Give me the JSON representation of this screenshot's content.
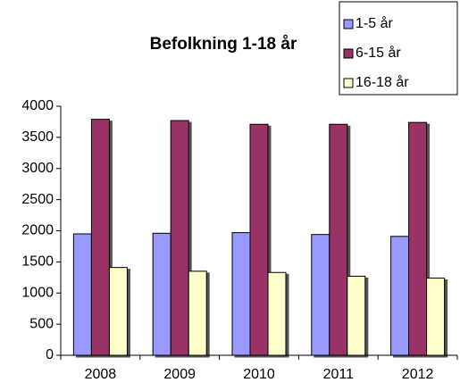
{
  "chart_data": {
    "type": "bar",
    "title": "Befolkning 1-18 år",
    "categories": [
      "2008",
      "2009",
      "2010",
      "2011",
      "2012"
    ],
    "series": [
      {
        "name": "1-5 år",
        "color": "#9999ff",
        "values": [
          1950,
          1960,
          1970,
          1940,
          1910
        ]
      },
      {
        "name": "6-15 år",
        "color": "#993366",
        "values": [
          3790,
          3770,
          3710,
          3710,
          3740
        ]
      },
      {
        "name": "16-18 år",
        "color": "#ffffcc",
        "values": [
          1410,
          1350,
          1330,
          1270,
          1240
        ]
      }
    ],
    "ylim": [
      0,
      4000
    ],
    "yticks": [
      0,
      500,
      1000,
      1500,
      2000,
      2500,
      3000,
      3500,
      4000
    ],
    "grid": false,
    "legend": "top-right"
  }
}
